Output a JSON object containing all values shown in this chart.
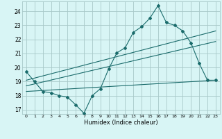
{
  "background_color": "#d8f5f5",
  "grid_color": "#a8c8c8",
  "line_color": "#1a6b6b",
  "marker": "D",
  "marker_size": 2.0,
  "xlabel": "Humidex (Indice chaleur)",
  "xlim": [
    -0.5,
    23.5
  ],
  "ylim": [
    16.7,
    24.7
  ],
  "yticks": [
    17,
    18,
    19,
    20,
    21,
    22,
    23,
    24
  ],
  "xticks": [
    0,
    1,
    2,
    3,
    4,
    5,
    6,
    7,
    8,
    9,
    10,
    11,
    12,
    13,
    14,
    15,
    16,
    17,
    18,
    19,
    20,
    21,
    22,
    23
  ],
  "series1_x": [
    0,
    1,
    2,
    3,
    4,
    5,
    6,
    7,
    8,
    9,
    10,
    11,
    12,
    13,
    14,
    15,
    16,
    17,
    18,
    19,
    20,
    21,
    22,
    23
  ],
  "series1_y": [
    19.7,
    19.0,
    18.3,
    18.2,
    18.0,
    17.9,
    17.35,
    16.75,
    18.0,
    18.5,
    19.9,
    21.05,
    21.4,
    22.5,
    22.9,
    23.5,
    24.4,
    23.2,
    23.0,
    22.6,
    21.75,
    20.3,
    19.1,
    19.1
  ],
  "series2_x": [
    0,
    23
  ],
  "series2_y": [
    19.1,
    22.6
  ],
  "series3_x": [
    0,
    23
  ],
  "series3_y": [
    18.7,
    21.85
  ],
  "series4_x": [
    0,
    23
  ],
  "series4_y": [
    18.3,
    19.1
  ]
}
